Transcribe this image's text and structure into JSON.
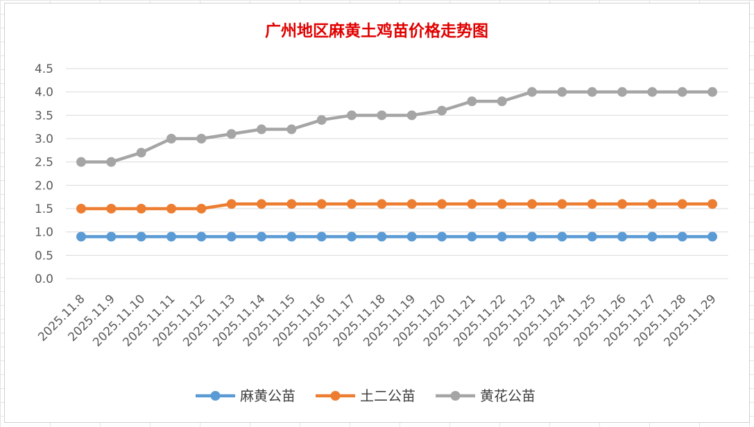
{
  "chart_data": {
    "type": "line",
    "title": "广州地区麻黄土鸡苗价格走势图",
    "xlabel": "",
    "ylabel": "",
    "ylim": [
      0,
      4.5
    ],
    "yticks": [
      "0.0",
      "0.5",
      "1.0",
      "1.5",
      "2.0",
      "2.5",
      "3.0",
      "3.5",
      "4.0",
      "4.5"
    ],
    "grid": true,
    "legend_position": "bottom",
    "x": [
      "2025.11.8",
      "2025.11.9",
      "2025.11.10",
      "2025.11.11",
      "2025.11.12",
      "2025.11.13",
      "2025.11.14",
      "2025.11.15",
      "2025.11.16",
      "2025.11.17",
      "2025.11.18",
      "2025.11.19",
      "2025.11.20",
      "2025.11.21",
      "2025.11.22",
      "2025.11.23",
      "2025.11.24",
      "2025.11.25",
      "2025.11.26",
      "2025.11.27",
      "2025.11.28",
      "2025.11.29"
    ],
    "series": [
      {
        "name": "麻黄公苗",
        "color": "#5b9bd5",
        "values": [
          0.9,
          0.9,
          0.9,
          0.9,
          0.9,
          0.9,
          0.9,
          0.9,
          0.9,
          0.9,
          0.9,
          0.9,
          0.9,
          0.9,
          0.9,
          0.9,
          0.9,
          0.9,
          0.9,
          0.9,
          0.9,
          0.9
        ]
      },
      {
        "name": "土二公苗",
        "color": "#ed7d31",
        "values": [
          1.5,
          1.5,
          1.5,
          1.5,
          1.5,
          1.6,
          1.6,
          1.6,
          1.6,
          1.6,
          1.6,
          1.6,
          1.6,
          1.6,
          1.6,
          1.6,
          1.6,
          1.6,
          1.6,
          1.6,
          1.6,
          1.6
        ]
      },
      {
        "name": "黄花公苗",
        "color": "#a5a5a5",
        "values": [
          2.5,
          2.5,
          2.7,
          3.0,
          3.0,
          3.1,
          3.2,
          3.2,
          3.4,
          3.5,
          3.5,
          3.5,
          3.6,
          3.8,
          3.8,
          4.0,
          4.0,
          4.0,
          4.0,
          4.0,
          4.0,
          4.0
        ]
      }
    ]
  }
}
